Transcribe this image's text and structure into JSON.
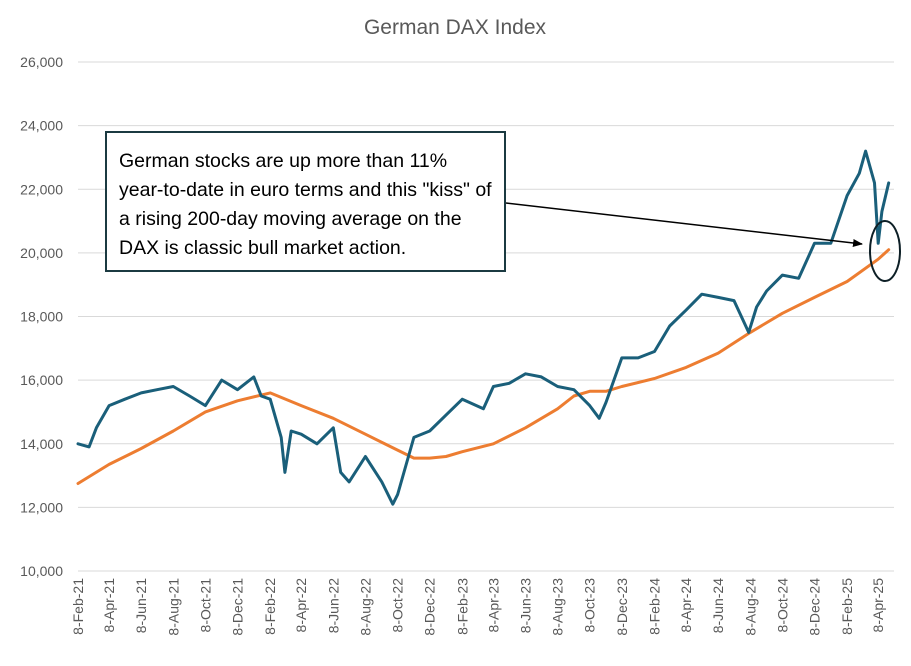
{
  "chart_data": {
    "type": "line",
    "title": "German DAX Index",
    "xlabel": "",
    "ylabel": "",
    "ylim": [
      10000,
      26000
    ],
    "yticks": [
      "10,000",
      "12,000",
      "14,000",
      "16,000",
      "18,000",
      "20,000",
      "22,000",
      "24,000",
      "26,000"
    ],
    "xticks": [
      "8-Feb-21",
      "8-Apr-21",
      "8-Jun-21",
      "8-Aug-21",
      "8-Oct-21",
      "8-Dec-21",
      "8-Feb-22",
      "8-Apr-22",
      "8-Jun-22",
      "8-Aug-22",
      "8-Oct-22",
      "8-Dec-22",
      "8-Feb-23",
      "8-Apr-23",
      "8-Jun-23",
      "8-Aug-23",
      "8-Oct-23",
      "8-Dec-23",
      "8-Feb-24",
      "8-Apr-24",
      "8-Jun-24",
      "8-Aug-24",
      "8-Oct-24",
      "8-Dec-24",
      "8-Feb-25",
      "8-Apr-25"
    ],
    "grid": true,
    "series": [
      {
        "color": "#1a5f7a",
        "x": [
          "8-Feb-21",
          "1-Mar-21",
          "15-Mar-21",
          "8-Apr-21",
          "8-May-21",
          "8-Jun-21",
          "8-Jul-21",
          "8-Aug-21",
          "8-Sep-21",
          "8-Oct-21",
          "8-Nov-21",
          "8-Dec-21",
          "8-Jan-22",
          "22-Jan-22",
          "8-Feb-22",
          "1-Mar-22",
          "8-Mar-22",
          "20-Mar-22",
          "8-Apr-22",
          "8-May-22",
          "8-Jun-22",
          "22-Jun-22",
          "8-Jul-22",
          "8-Aug-22",
          "8-Sep-22",
          "29-Sep-22",
          "8-Oct-22",
          "8-Nov-22",
          "8-Dec-22",
          "8-Jan-23",
          "8-Feb-23",
          "20-Mar-23",
          "8-Apr-23",
          "8-May-23",
          "8-Jun-23",
          "8-Jul-23",
          "8-Aug-23",
          "8-Sep-23",
          "8-Oct-23",
          "26-Oct-23",
          "8-Nov-23",
          "8-Dec-23",
          "8-Jan-24",
          "8-Feb-24",
          "8-Mar-24",
          "8-Apr-24",
          "8-May-24",
          "8-Jun-24",
          "8-Jul-24",
          "5-Aug-24",
          "20-Aug-24",
          "8-Sep-24",
          "8-Oct-24",
          "8-Nov-24",
          "8-Dec-24",
          "8-Jan-25",
          "8-Feb-25",
          "3-Mar-25",
          "15-Mar-25",
          "1-Apr-25",
          "8-Apr-25",
          "15-Apr-25",
          "28-Apr-25"
        ],
        "values": [
          14000,
          13900,
          14500,
          15200,
          15400,
          15600,
          15700,
          15800,
          15500,
          15200,
          16000,
          15700,
          16100,
          15500,
          15400,
          14200,
          13100,
          14400,
          14300,
          14000,
          14500,
          13100,
          12800,
          13600,
          12800,
          12100,
          12400,
          14200,
          14400,
          14900,
          15400,
          15100,
          15800,
          15900,
          16200,
          16100,
          15800,
          15700,
          15200,
          14800,
          15300,
          16700,
          16700,
          16900,
          17700,
          18200,
          18700,
          18600,
          18500,
          17500,
          18300,
          18800,
          19300,
          19200,
          20300,
          20300,
          21800,
          22500,
          23200,
          22200,
          20300,
          21300,
          22200
        ]
      },
      {
        "color": "#ed7d31",
        "x": [
          "8-Feb-21",
          "8-Apr-21",
          "8-Jun-21",
          "8-Aug-21",
          "8-Oct-21",
          "8-Dec-21",
          "8-Feb-22",
          "8-Apr-22",
          "8-Jun-22",
          "8-Aug-22",
          "8-Oct-22",
          "8-Nov-22",
          "8-Dec-22",
          "8-Jan-23",
          "8-Feb-23",
          "8-Apr-23",
          "8-Jun-23",
          "8-Aug-23",
          "8-Sep-23",
          "8-Oct-23",
          "8-Nov-23",
          "8-Dec-23",
          "8-Feb-24",
          "8-Apr-24",
          "8-Jun-24",
          "8-Aug-24",
          "8-Oct-24",
          "8-Dec-24",
          "8-Feb-25",
          "8-Apr-25",
          "28-Apr-25"
        ],
        "values": [
          12750,
          13350,
          13850,
          14400,
          15000,
          15350,
          15600,
          15200,
          14800,
          14300,
          13800,
          13550,
          13550,
          13600,
          13750,
          14000,
          14500,
          15100,
          15500,
          15650,
          15650,
          15800,
          16050,
          16400,
          16850,
          17500,
          18100,
          18600,
          19100,
          19800,
          20100
        ]
      }
    ],
    "annotations": [
      "German stocks are up more than 11% year-to-date in euro terms and this \"kiss\" of a rising 200-day moving average on the DAX is classic bull market action."
    ]
  }
}
